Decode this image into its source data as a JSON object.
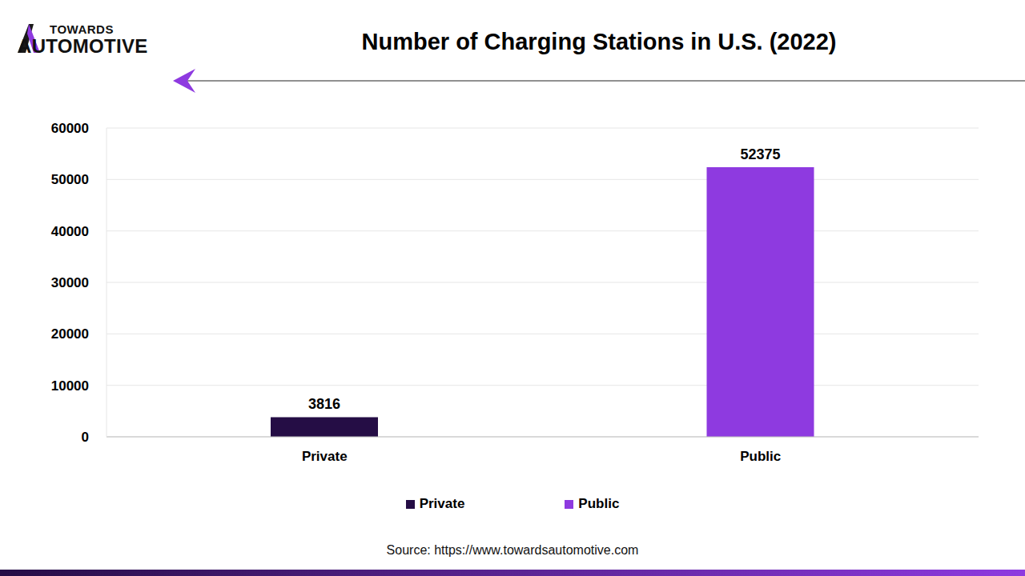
{
  "logo": {
    "line1": "TOWARDS",
    "line2": "AUTOMOTIVE"
  },
  "source": "Source: https://www.towardsautomotive.com",
  "chart_data": {
    "type": "bar",
    "title": "Number of Charging Stations in U.S. (2022)",
    "categories": [
      "Private",
      "Public"
    ],
    "values": [
      3816,
      52375
    ],
    "colors": [
      "#250d45",
      "#8e3ae0"
    ],
    "ylim": [
      0,
      60000
    ],
    "yticks": [
      0,
      10000,
      20000,
      30000,
      40000,
      50000,
      60000
    ],
    "grid": true,
    "data_labels": true,
    "legend": "bottom"
  }
}
